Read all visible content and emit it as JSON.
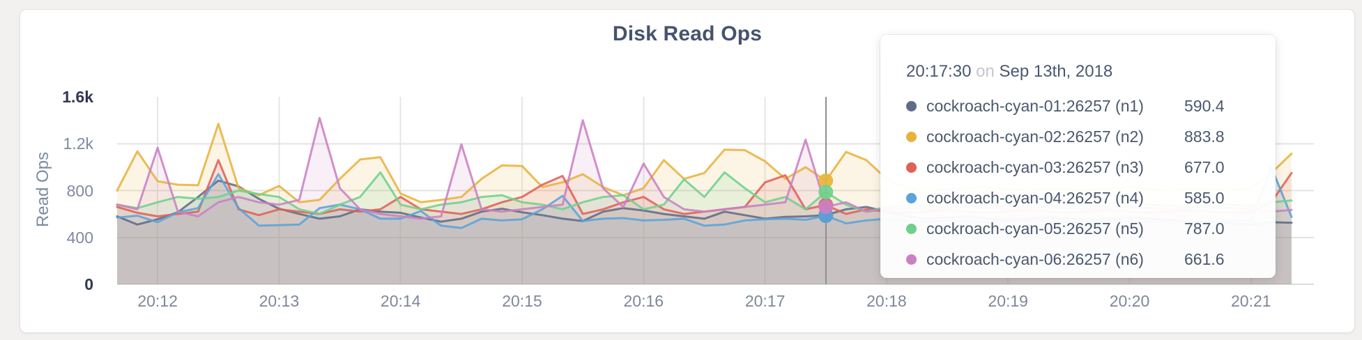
{
  "card": {
    "title": "Disk Read Ops"
  },
  "axes": {
    "y_label": "Read Ops",
    "y_ticks": [
      {
        "label": "0",
        "value": 0,
        "emphasis": true,
        "grid": false
      },
      {
        "label": "400",
        "value": 400,
        "emphasis": false,
        "grid": true
      },
      {
        "label": "800",
        "value": 800,
        "emphasis": false,
        "grid": true
      },
      {
        "label": "1.2k",
        "value": 1200,
        "emphasis": false,
        "grid": true
      },
      {
        "label": "1.6k",
        "value": 1600,
        "emphasis": true,
        "grid": false
      }
    ],
    "x_ticks": [
      "20:12",
      "20:13",
      "20:14",
      "20:15",
      "20:16",
      "20:17",
      "20:18",
      "20:19",
      "20:20",
      "20:21"
    ]
  },
  "tooltip": {
    "time": "20:17:30",
    "on_word": "on",
    "date": "Sep 13th, 2018",
    "rows": [
      {
        "series": "cockroach-cyan-01:26257 (n1)",
        "value": "590.4",
        "color": "#5F6C87"
      },
      {
        "series": "cockroach-cyan-02:26257 (n2)",
        "value": "883.8",
        "color": "#E8B33C"
      },
      {
        "series": "cockroach-cyan-03:26257 (n3)",
        "value": "677.0",
        "color": "#DF6159"
      },
      {
        "series": "cockroach-cyan-04:26257 (n4)",
        "value": "585.0",
        "color": "#5BA3DA"
      },
      {
        "series": "cockroach-cyan-05:26257 (n5)",
        "value": "787.0",
        "color": "#6FD08D"
      },
      {
        "series": "cockroach-cyan-06:26257 (n6)",
        "value": "661.6",
        "color": "#CB80C4"
      }
    ]
  },
  "chart_data": {
    "type": "line",
    "title": "Disk Read Ops",
    "ylabel": "Read Ops",
    "ylim": [
      0,
      1600
    ],
    "grid": true,
    "x_start": "20:11:40",
    "x_step_seconds": 10,
    "x_tick_labels": [
      "20:12",
      "20:13",
      "20:14",
      "20:15",
      "20:16",
      "20:17",
      "20:18",
      "20:19",
      "20:20",
      "20:21"
    ],
    "hover_index": 35,
    "hover_time": "20:17:30",
    "hover_date": "Sep 13th, 2018",
    "series": [
      {
        "name": "cockroach-cyan-01:26257 (n1)",
        "color": "#5F6C87",
        "values": [
          580,
          510,
          555,
          615,
          745,
          885,
          835,
          730,
          645,
          600,
          560,
          580,
          640,
          620,
          610,
          570,
          535,
          560,
          620,
          645,
          615,
          590,
          560,
          540,
          620,
          650,
          630,
          600,
          580,
          560,
          620,
          590,
          560,
          575,
          580,
          590.4,
          640,
          660,
          620,
          580,
          560,
          570,
          580,
          560,
          550,
          560,
          570,
          560,
          550,
          560,
          570,
          560,
          550,
          540,
          530,
          520,
          510,
          530,
          525
        ]
      },
      {
        "name": "cockroach-cyan-02:26257 (n2)",
        "color": "#E8B33C",
        "values": [
          800,
          1135,
          880,
          850,
          845,
          1370,
          820,
          760,
          840,
          700,
          720,
          900,
          1065,
          1085,
          775,
          700,
          720,
          745,
          900,
          1015,
          1010,
          830,
          870,
          940,
          830,
          760,
          820,
          1060,
          900,
          950,
          1150,
          1145,
          1050,
          900,
          1000,
          883.8,
          1130,
          1060,
          900,
          820,
          800,
          810,
          820,
          830,
          810,
          800,
          820,
          810,
          800,
          820,
          830,
          810,
          800,
          820,
          810,
          800,
          820,
          950,
          1115
        ]
      },
      {
        "name": "cockroach-cyan-03:26257 (n3)",
        "color": "#DF6159",
        "values": [
          660,
          610,
          580,
          600,
          620,
          1060,
          640,
          590,
          640,
          620,
          600,
          640,
          620,
          640,
          745,
          640,
          620,
          600,
          640,
          700,
          745,
          850,
          925,
          600,
          640,
          700,
          745,
          640,
          600,
          620,
          640,
          660,
          870,
          930,
          640,
          677,
          600,
          640,
          620,
          610,
          620,
          630,
          620,
          610,
          620,
          630,
          620,
          610,
          620,
          630,
          620,
          610,
          620,
          630,
          620,
          610,
          620,
          700,
          950
        ]
      },
      {
        "name": "cockroach-cyan-04:26257 (n4)",
        "color": "#5BA3DA",
        "values": [
          570,
          585,
          530,
          615,
          650,
          940,
          650,
          500,
          505,
          510,
          650,
          680,
          640,
          560,
          560,
          625,
          500,
          480,
          560,
          545,
          555,
          640,
          755,
          540,
          560,
          565,
          545,
          550,
          560,
          500,
          510,
          545,
          555,
          560,
          550,
          585,
          520,
          545,
          560,
          540,
          530,
          545,
          540,
          530,
          540,
          545,
          540,
          530,
          540,
          545,
          540,
          530,
          545,
          540,
          530,
          545,
          540,
          1000,
          575
        ]
      },
      {
        "name": "cockroach-cyan-05:26257 (n5)",
        "color": "#6FD08D",
        "values": [
          680,
          650,
          700,
          745,
          730,
          745,
          800,
          770,
          745,
          640,
          600,
          680,
          745,
          955,
          680,
          640,
          680,
          700,
          745,
          760,
          700,
          680,
          640,
          700,
          745,
          760,
          640,
          680,
          896,
          745,
          955,
          820,
          700,
          745,
          640,
          787,
          680,
          620,
          660,
          680,
          670,
          660,
          670,
          680,
          670,
          660,
          670,
          680,
          670,
          660,
          670,
          680,
          670,
          660,
          670,
          680,
          670,
          700,
          715
        ]
      },
      {
        "name": "cockroach-cyan-06:26257 (n6)",
        "color": "#CB80C4",
        "values": [
          680,
          640,
          1165,
          620,
          580,
          700,
          745,
          700,
          680,
          720,
          1420,
          820,
          640,
          600,
          580,
          560,
          580,
          1195,
          640,
          620,
          640,
          660,
          680,
          1400,
          820,
          660,
          1030,
          745,
          640,
          620,
          640,
          660,
          680,
          700,
          1235,
          661.6,
          700,
          620,
          640,
          650,
          640,
          650,
          660,
          650,
          640,
          650,
          660,
          650,
          640,
          650,
          660,
          650,
          640,
          650,
          660,
          650,
          640,
          620,
          635
        ]
      }
    ]
  },
  "colors": {
    "page_bg": "#f2f1f0",
    "card_bg": "#ffffff",
    "title_text": "#46536e",
    "tick_text": "#7e89a0",
    "tick_text_emphasis": "#2e3850",
    "gridline": "#e7e6e4",
    "hover_line": "#8f8f8f",
    "tooltip_text": "#4a586e"
  }
}
